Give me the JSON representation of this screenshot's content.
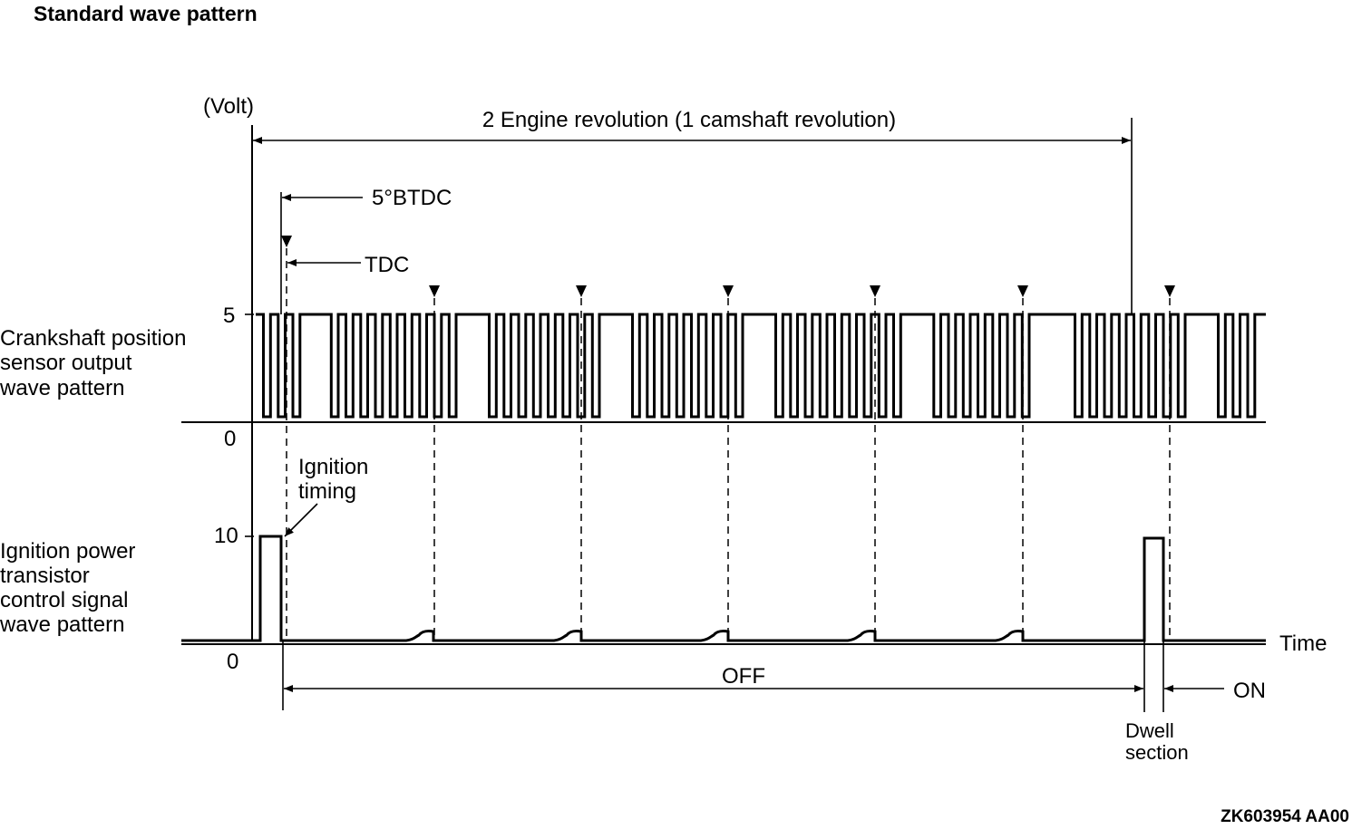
{
  "title": "Standard wave pattern",
  "units": "(Volt)",
  "revolution_label": "2 Engine revolution (1 camshaft revolution)",
  "btdc_label": "5°BTDC",
  "tdc_label": "TDC",
  "crank": {
    "label_lines": [
      "Crankshaft position",
      "sensor output",
      "wave pattern"
    ],
    "high_value": "5",
    "low_value": "0"
  },
  "ignition": {
    "label_lines": [
      "Ignition power",
      "transistor",
      "control signal",
      "wave pattern"
    ],
    "high_value": "10",
    "low_value": "0",
    "timing_lines": [
      "Ignition",
      "timing"
    ]
  },
  "time_label": "Time",
  "off_label": "OFF",
  "on_label": "ON",
  "dwell_lines": [
    "Dwell",
    "section"
  ],
  "figure_code": "ZK603954 AA00"
}
